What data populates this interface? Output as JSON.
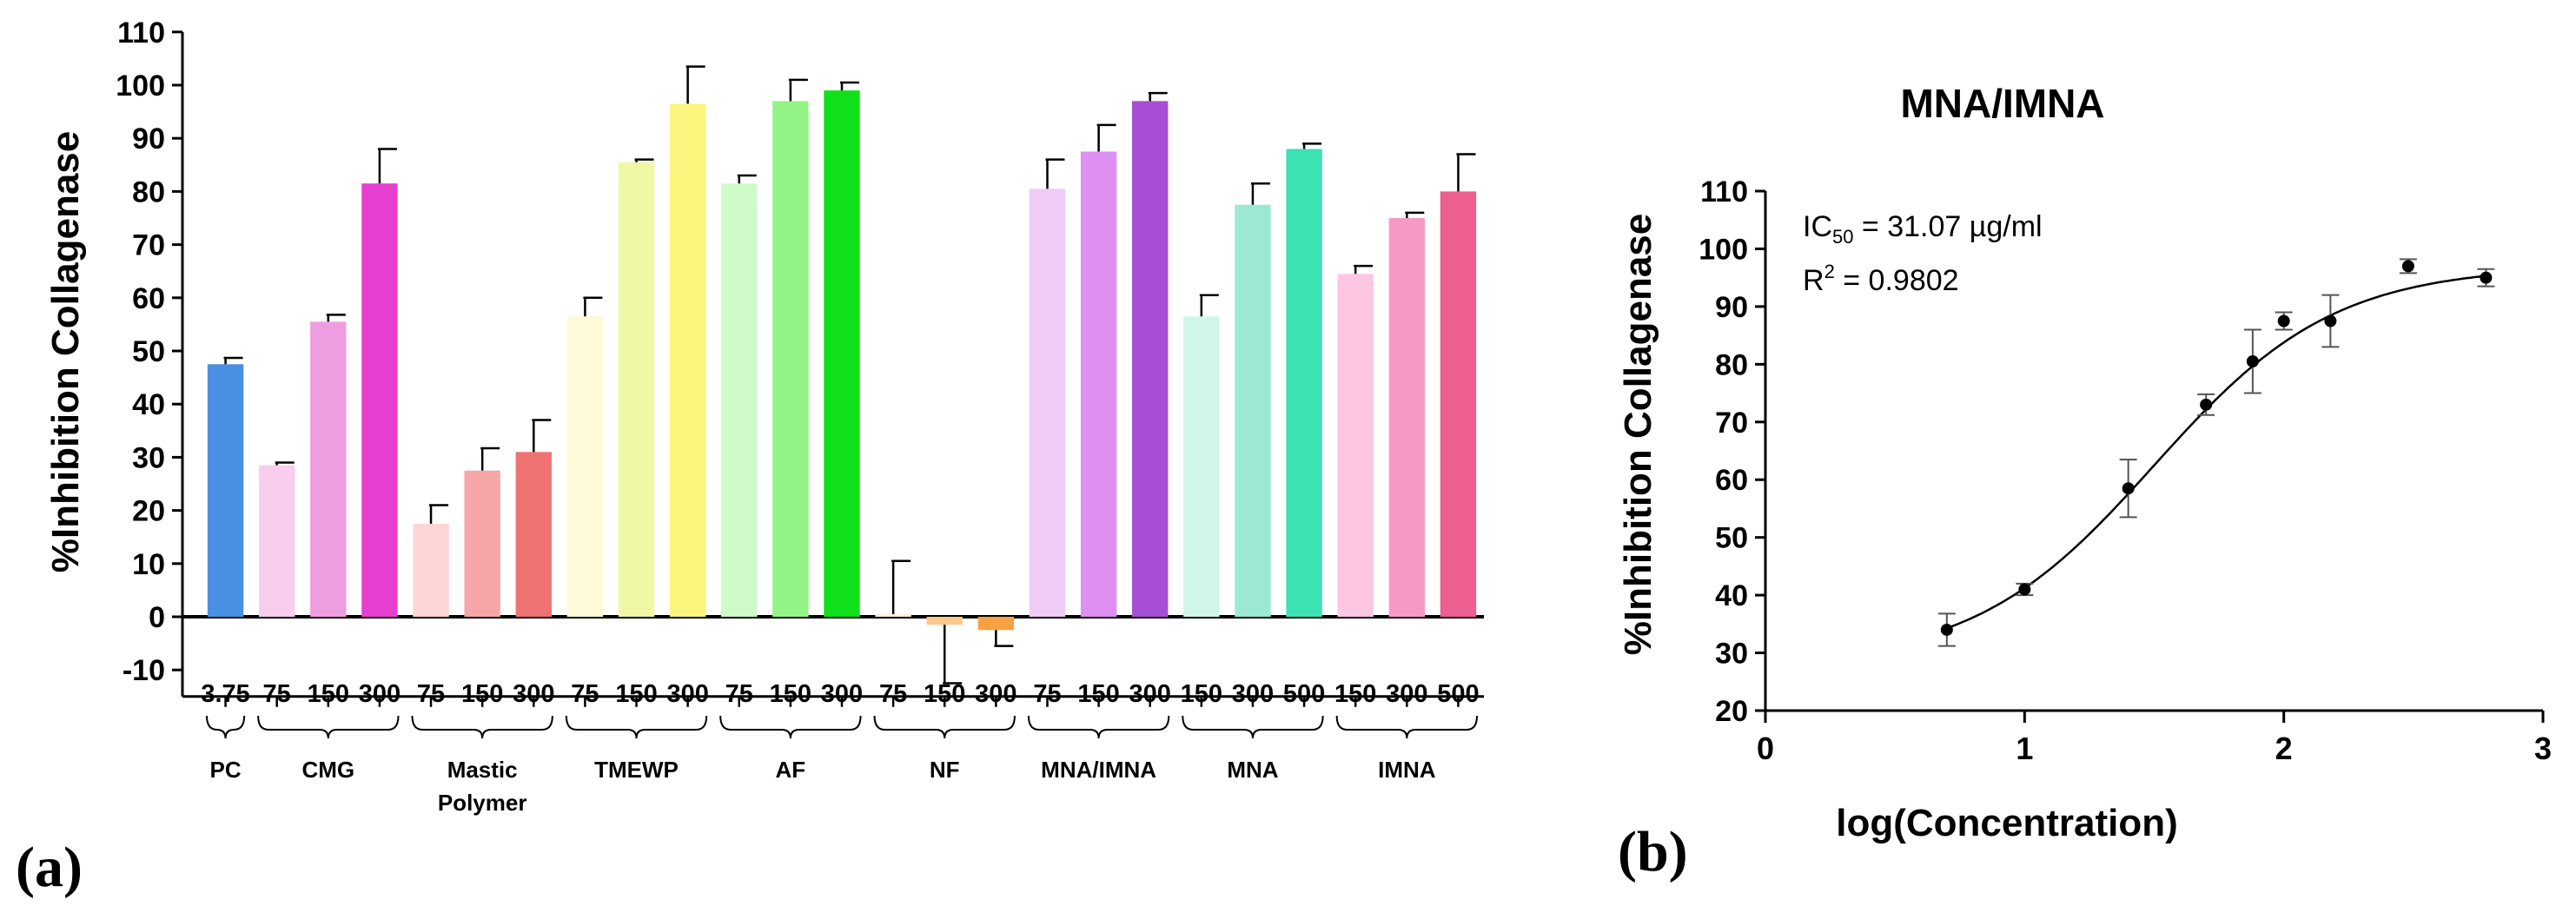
{
  "panels": {
    "a": {
      "label": "(a)"
    },
    "b": {
      "label": "(b)"
    }
  },
  "chart_data": [
    {
      "id": "panel-a",
      "type": "bar",
      "title": "",
      "ylabel": "%Inhibition Collagenase",
      "xlabel": "",
      "ylim": [
        -15,
        110
      ],
      "yticks": [
        -10,
        0,
        10,
        20,
        30,
        40,
        50,
        60,
        70,
        80,
        90,
        100,
        110
      ],
      "groups": [
        {
          "name": "PC",
          "bars": [
            {
              "dose": "3.75",
              "value": 47.5,
              "err": 1.2,
              "color": "#4a90e2"
            }
          ]
        },
        {
          "name": "CMG",
          "bars": [
            {
              "dose": "75",
              "value": 28.5,
              "err": 0.5,
              "color": "#f8cdee"
            },
            {
              "dose": "150",
              "value": 55.5,
              "err": 1.3,
              "color": "#ee9ee0"
            },
            {
              "dose": "300",
              "value": 81.5,
              "err": 6.5,
              "color": "#e63fcf"
            }
          ]
        },
        {
          "name": "Mastic Polymer",
          "bars": [
            {
              "dose": "75",
              "value": 17.5,
              "err": 3.5,
              "color": "#fdd5d5"
            },
            {
              "dose": "150",
              "value": 27.5,
              "err": 4.2,
              "color": "#f6a6a6"
            },
            {
              "dose": "300",
              "value": 31.0,
              "err": 6.0,
              "color": "#ef7373"
            }
          ]
        },
        {
          "name": "TMEWP",
          "bars": [
            {
              "dose": "75",
              "value": 56.5,
              "err": 3.5,
              "color": "#fdfbd7"
            },
            {
              "dose": "150",
              "value": 85.5,
              "err": 0.5,
              "color": "#f0f8a6"
            },
            {
              "dose": "300",
              "value": 96.5,
              "err": 7.0,
              "color": "#fbf57d"
            }
          ]
        },
        {
          "name": "AF",
          "bars": [
            {
              "dose": "75",
              "value": 81.5,
              "err": 1.5,
              "color": "#cffbc9"
            },
            {
              "dose": "150",
              "value": 97.0,
              "err": 4.0,
              "color": "#93f486"
            },
            {
              "dose": "300",
              "value": 99.0,
              "err": 1.5,
              "color": "#10e01a"
            }
          ]
        },
        {
          "name": "NF",
          "bars": [
            {
              "dose": "75",
              "value": 0.5,
              "err": 10.0,
              "color": "#fff0dc"
            },
            {
              "dose": "150",
              "value": -1.5,
              "err": 11.0,
              "color": "#fbc98c"
            },
            {
              "dose": "300",
              "value": -2.5,
              "err": 3.0,
              "color": "#f7a142"
            }
          ]
        },
        {
          "name": "MNA/IMNA",
          "bars": [
            {
              "dose": "75",
              "value": 80.5,
              "err": 5.5,
              "color": "#eeccf6"
            },
            {
              "dose": "150",
              "value": 87.5,
              "err": 5.0,
              "color": "#dd8ff2"
            },
            {
              "dose": "300",
              "value": 97.0,
              "err": 1.5,
              "color": "#a64ed6"
            }
          ]
        },
        {
          "name": "MNA",
          "bars": [
            {
              "dose": "150",
              "value": 56.5,
              "err": 4.0,
              "color": "#cff6e8"
            },
            {
              "dose": "300",
              "value": 77.5,
              "err": 4.0,
              "color": "#9be9d2"
            },
            {
              "dose": "500",
              "value": 88.0,
              "err": 1.0,
              "color": "#3de2b4"
            }
          ]
        },
        {
          "name": "IMNA",
          "bars": [
            {
              "dose": "150",
              "value": 64.5,
              "err": 1.5,
              "color": "#fdc7e4"
            },
            {
              "dose": "300",
              "value": 75.0,
              "err": 1.0,
              "color": "#f59ac6"
            },
            {
              "dose": "500",
              "value": 80.0,
              "err": 7.0,
              "color": "#ec5f90"
            }
          ]
        }
      ]
    },
    {
      "id": "panel-b",
      "type": "scatter",
      "title": "MNA/IMNA",
      "xlabel": "log(Concentration)",
      "ylabel": "%Inhibition Collagenase",
      "xlim": [
        0,
        3
      ],
      "ylim": [
        20,
        110
      ],
      "xticks": [
        0,
        1,
        2,
        3
      ],
      "yticks": [
        20,
        30,
        40,
        50,
        60,
        70,
        80,
        90,
        100,
        110
      ],
      "points": [
        {
          "x": 0.7,
          "y": 34.0,
          "err": 2.8
        },
        {
          "x": 1.0,
          "y": 41.0,
          "err": 1.0
        },
        {
          "x": 1.4,
          "y": 58.5,
          "err": 5.0
        },
        {
          "x": 1.7,
          "y": 73.0,
          "err": 1.8
        },
        {
          "x": 1.88,
          "y": 80.5,
          "err": 5.5
        },
        {
          "x": 2.0,
          "y": 87.5,
          "err": 1.5
        },
        {
          "x": 2.18,
          "y": 87.5,
          "err": 4.5
        },
        {
          "x": 2.48,
          "y": 97.0,
          "err": 1.2
        },
        {
          "x": 2.78,
          "y": 95.0,
          "err": 1.5
        }
      ],
      "fit": {
        "model": "sigmoidal dose-response",
        "bottom": 28.0,
        "top": 97.0,
        "logEC50": 1.5,
        "hill": 1.25
      },
      "annotations": {
        "ic50_prefix": "IC",
        "ic50_sub": "50",
        "ic50_value": " = 31.07 µg/ml",
        "r2_prefix": "R",
        "r2_sup": "2",
        "r2_value": " = 0.9802"
      }
    }
  ]
}
